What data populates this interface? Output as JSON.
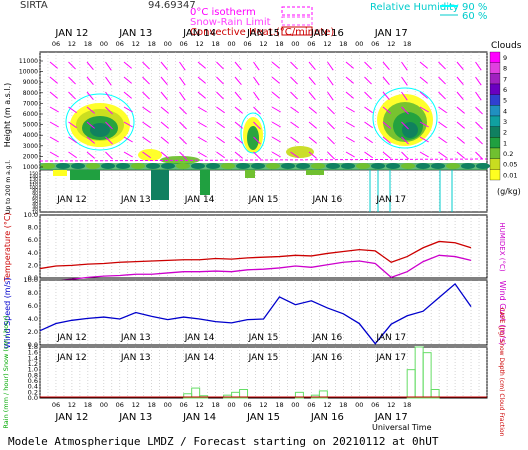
{
  "chart_data": [
    {
      "type": "heatmap",
      "name": "clouds",
      "station": "SIRTA",
      "station_value": "94.69347",
      "legend": {
        "isotherm": "0°C isotherm",
        "snow_rain": "Snow-Rain Limit",
        "convective": "Convective Heat.(°C/minute)",
        "rh_label": "Relative Humidity",
        "rh_values": [
          "90 %",
          "60 %"
        ]
      },
      "ylabel": "Height (m a.s.l.)",
      "ylabel_low": "Up to 200 m a.g.l.",
      "y_ticks_upper": [
        "11000",
        "10000",
        "9000",
        "8000",
        "7000",
        "6000",
        "5000",
        "4000",
        "3000",
        "2000",
        "1000"
      ],
      "y_ticks_lower": [
        "150",
        "140",
        "130",
        "120",
        "110",
        "100",
        "90",
        "80",
        "70",
        "60",
        "50",
        "40",
        "30",
        "20",
        "10"
      ],
      "colorbar_title": "Clouds",
      "colorbar_ticks": [
        "9",
        "8",
        "7",
        "6",
        "5",
        "4",
        "3",
        "2",
        "1",
        "0.2",
        "0.05",
        "0.01"
      ],
      "colorbar_unit": "(g/kg)",
      "colorbar_colors": [
        "#ff00ff",
        "#e040e0",
        "#a020c0",
        "#6a00c0",
        "#3040d0",
        "#2090c0",
        "#10a0a0",
        "#108060",
        "#20a040",
        "#70c030",
        "#c8dc20",
        "#ffff20"
      ],
      "day_labels": [
        "JAN 12",
        "JAN 13",
        "JAN 14",
        "JAN 15",
        "JAN 16",
        "JAN 17"
      ],
      "hour_labels": [
        "06",
        "12",
        "18",
        "00",
        "06",
        "12",
        "18",
        "00",
        "06",
        "12",
        "18",
        "00",
        "06",
        "12",
        "18",
        "00",
        "06",
        "12",
        "18",
        "00",
        "06",
        "12",
        "18"
      ]
    },
    {
      "type": "line",
      "name": "temperature",
      "ylabel": "Temperature (°C)",
      "ylabel_right": "HUMIDEX (°C)",
      "y_ticks": [
        "10.0",
        "8.0",
        "6.0",
        "4.0",
        "2.0",
        "0.0"
      ],
      "ylim": [
        0,
        10
      ],
      "x_hours": [
        0,
        6,
        12,
        18,
        24,
        30,
        36,
        42,
        48,
        54,
        60,
        66,
        72,
        78,
        84,
        90,
        96,
        102,
        108,
        114,
        120,
        126,
        132,
        138,
        144,
        150,
        156,
        162
      ],
      "series": [
        {
          "color": "#cc0000",
          "values": [
            1.5,
            1.9,
            2.0,
            2.2,
            2.3,
            2.5,
            2.6,
            2.7,
            2.8,
            2.9,
            2.9,
            3.1,
            3.0,
            3.2,
            3.3,
            3.4,
            3.6,
            3.5,
            3.9,
            4.2,
            4.5,
            4.3,
            2.5,
            3.4,
            4.8,
            5.8,
            5.6,
            4.8
          ]
        },
        {
          "color": "#cc00cc",
          "values": [
            -0.6,
            -0.4,
            -0.2,
            0.1,
            0.3,
            0.4,
            0.6,
            0.6,
            0.8,
            1.0,
            1.0,
            1.1,
            1.0,
            1.3,
            1.4,
            1.6,
            1.9,
            1.7,
            2.1,
            2.5,
            2.7,
            2.3,
            0.1,
            1.0,
            2.6,
            3.6,
            3.4,
            2.8
          ]
        }
      ]
    },
    {
      "type": "line",
      "name": "wind",
      "ylabel": "Wind Speed (m/s)",
      "ylabel_right": "Wind Gust (m/s)",
      "y_ticks": [
        "10.0",
        "8.0",
        "6.0",
        "4.0",
        "2.0",
        "0.0"
      ],
      "ylim": [
        0,
        10
      ],
      "x_hours": [
        0,
        6,
        12,
        18,
        24,
        30,
        36,
        42,
        48,
        54,
        60,
        66,
        72,
        78,
        84,
        90,
        96,
        102,
        108,
        114,
        120,
        126,
        132,
        138,
        144,
        150,
        156,
        162
      ],
      "series": [
        {
          "color": "#0000cc",
          "values": [
            2.2,
            3.3,
            3.8,
            4.1,
            4.3,
            4.0,
            5.0,
            4.4,
            3.9,
            4.3,
            4.0,
            3.6,
            3.4,
            3.9,
            4.0,
            7.4,
            6.2,
            6.8,
            5.7,
            4.8,
            3.3,
            0.2,
            3.2,
            4.5,
            5.2,
            7.3,
            9.4,
            5.9
          ]
        }
      ]
    },
    {
      "type": "bar",
      "name": "rain",
      "ylabel": "Rain (mm / hour) Snow (cm / hour)",
      "ylabel_right": "CAPE (J/g) Snow Depth (cm) Cloud Fraction",
      "y_ticks": [
        "1.8",
        "1.6",
        "1.4",
        "1.2",
        "1.0",
        "0.8",
        "0.6",
        "0.4",
        "0.2",
        "0.0"
      ],
      "ylim": [
        0,
        1.8
      ],
      "x_hours": [
        54,
        57,
        60,
        69,
        72,
        75,
        96,
        102,
        105,
        138,
        141,
        144,
        147
      ],
      "values": [
        0.15,
        0.35,
        0.08,
        0.1,
        0.2,
        0.3,
        0.2,
        0.1,
        0.25,
        1.0,
        1.8,
        1.6,
        0.3
      ]
    }
  ],
  "xlabel": "Universal Time",
  "footer": "Modele Atmospherique LMDZ / Forecast starting on 20210112 at 0hUT"
}
